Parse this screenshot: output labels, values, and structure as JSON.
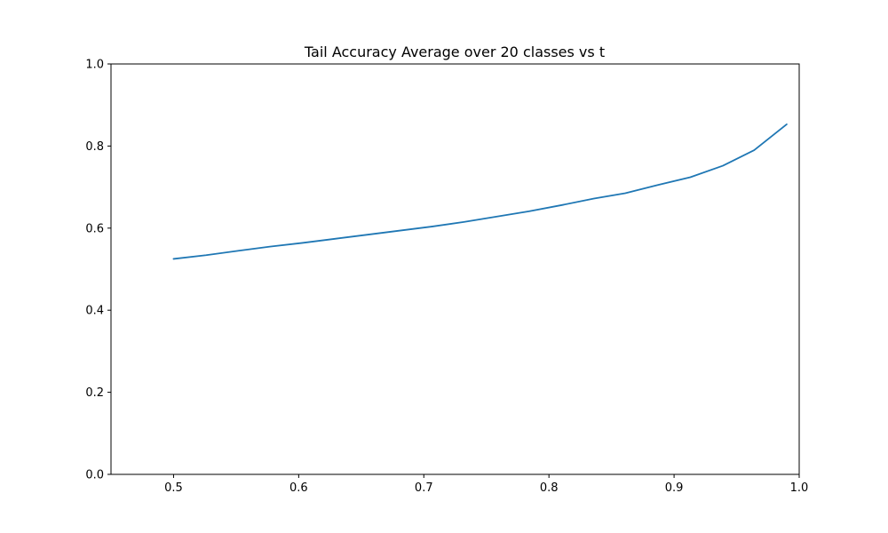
{
  "chart_data": {
    "type": "line",
    "title": "Tail Accuracy Average over 20 classes vs t",
    "xlabel": "",
    "ylabel": "",
    "xlim": [
      0.45,
      1.0
    ],
    "ylim": [
      0.0,
      1.0
    ],
    "xticks": [
      0.5,
      0.6,
      0.7,
      0.8,
      0.9,
      1.0
    ],
    "xtick_labels": [
      "0.5",
      "0.6",
      "0.7",
      "0.8",
      "0.9",
      "1.0"
    ],
    "yticks": [
      0.0,
      0.2,
      0.4,
      0.6,
      0.8,
      1.0
    ],
    "ytick_labels": [
      "0.0",
      "0.2",
      "0.4",
      "0.6",
      "0.8",
      "1.0"
    ],
    "grid": false,
    "series": [
      {
        "color": "#1f77b4",
        "x": [
          0.5,
          0.526,
          0.552,
          0.577,
          0.603,
          0.629,
          0.655,
          0.681,
          0.707,
          0.732,
          0.758,
          0.784,
          0.81,
          0.836,
          0.861,
          0.887,
          0.913,
          0.939,
          0.964,
          0.99
        ],
        "y": [
          0.525,
          0.534,
          0.545,
          0.555,
          0.564,
          0.574,
          0.584,
          0.594,
          0.604,
          0.615,
          0.628,
          0.641,
          0.656,
          0.672,
          0.685,
          0.705,
          0.724,
          0.752,
          0.79,
          0.853
        ]
      }
    ]
  }
}
